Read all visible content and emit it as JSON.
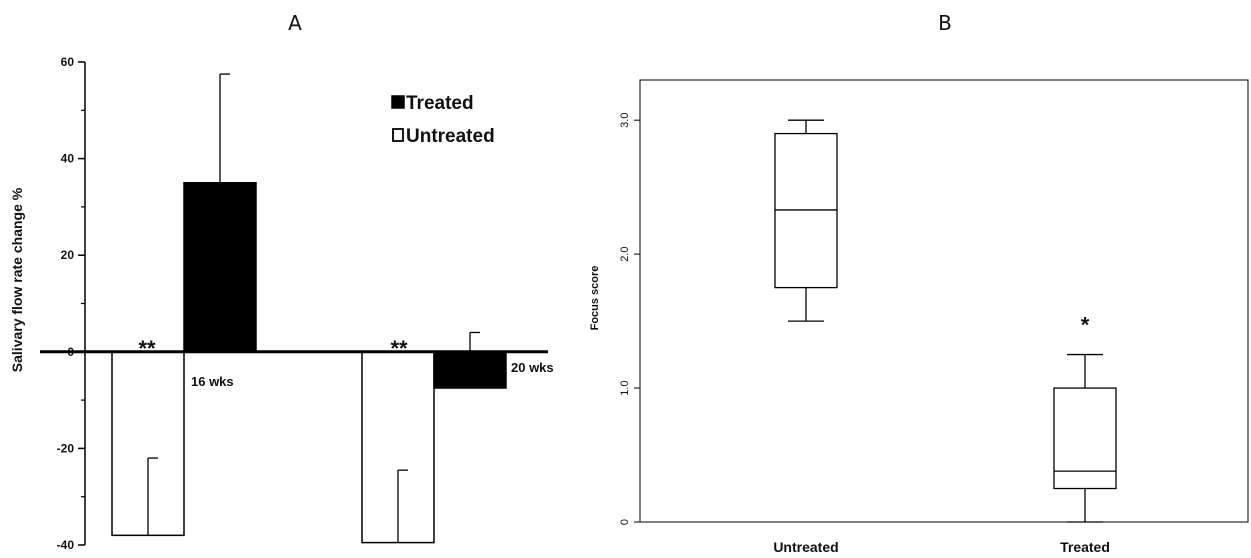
{
  "chart_data": [
    {
      "type": "bar",
      "panel_label": "A",
      "ylabel": "Salivary flow rate change %",
      "ylim": [
        -40,
        60
      ],
      "yticks": [
        "60",
        "40",
        "20",
        "0",
        "-20",
        "-40"
      ],
      "groups": [
        "16 wks",
        "20 wks"
      ],
      "legend": {
        "placement": "top-right",
        "entries": [
          "Treated",
          "Untreated"
        ]
      },
      "series": [
        {
          "name": "Untreated",
          "color": "#ffffff",
          "values": [
            -38,
            -39.5
          ],
          "error": [
            16,
            15
          ]
        },
        {
          "name": "Treated",
          "color": "#000000",
          "values": [
            35,
            -7.5
          ],
          "error": [
            22.5,
            11.5
          ]
        }
      ],
      "annotations": [
        "**",
        "**"
      ]
    },
    {
      "type": "box",
      "panel_label": "B",
      "ylabel": "Focus score",
      "ylim": [
        0,
        3.3
      ],
      "yticks": [
        "0",
        "1.0",
        "2.0",
        "3.0"
      ],
      "categories": [
        "Untreated",
        "Treated"
      ],
      "boxes": [
        {
          "min": 1.5,
          "q1": 1.75,
          "median": 2.33,
          "q3": 2.9,
          "max": 3.0
        },
        {
          "min": 0.0,
          "q1": 0.25,
          "median": 0.38,
          "q3": 1.0,
          "max": 1.25
        }
      ],
      "annotations": [
        "*"
      ]
    }
  ]
}
